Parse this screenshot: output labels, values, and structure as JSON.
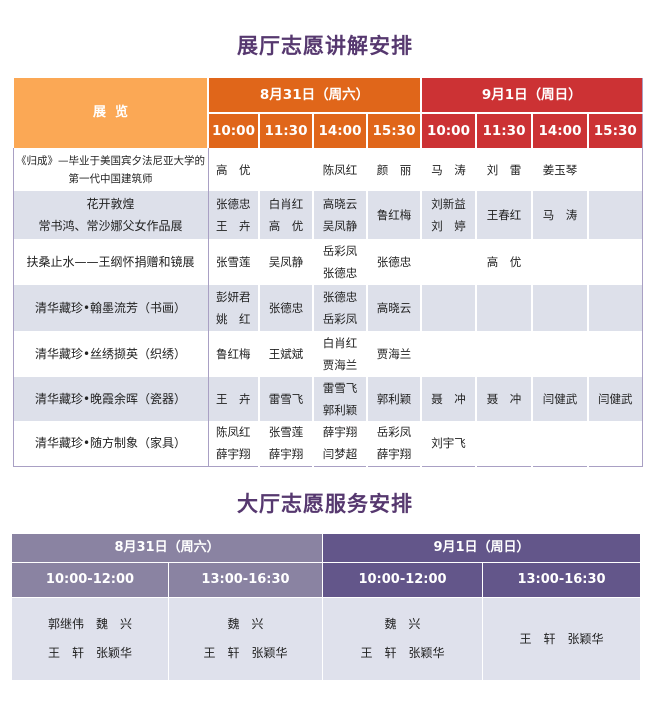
{
  "exhibit_title": "展厅志愿讲解安排",
  "exhibit_table": {
    "header_label": "展  览",
    "days": [
      {
        "label": "8月31日（周六）",
        "color": "#e0661a",
        "times": [
          "10:00",
          "11:30",
          "14:00",
          "15:30"
        ]
      },
      {
        "label": "9月1日（周日）",
        "color": "#cc3234",
        "times": [
          "10:00",
          "11:30",
          "14:00",
          "15:30"
        ]
      }
    ],
    "rows": [
      {
        "exhibit": "《归成》—毕业于美国宾夕法尼亚大学的\n第一代中国建筑师",
        "cells": [
          "高　优",
          "",
          "陈凤红",
          "颜　丽",
          "马　涛",
          "刘　雷",
          "姜玉琴",
          ""
        ]
      },
      {
        "exhibit": "花开敦煌\n常书鸿、常沙娜父女作品展",
        "cells": [
          "张德忠\n王　卉",
          "白肖红\n高　优",
          "高晓云\n吴凤静",
          "鲁红梅",
          "刘新益\n刘　婷",
          "王春红",
          "马　涛",
          ""
        ]
      },
      {
        "exhibit": "扶桑止水——王纲怀捐赠和镜展",
        "cells": [
          "张雪莲",
          "吴凤静",
          "岳彩凤\n张德忠",
          "张德忠",
          "",
          "高　优",
          "",
          ""
        ]
      },
      {
        "exhibit": "清华藏珍•翰墨流芳（书画）",
        "cells": [
          "彭妍君\n姚　红",
          "张德忠",
          "张德忠\n岳彩凤",
          "高晓云",
          "",
          "",
          "",
          ""
        ]
      },
      {
        "exhibit": "清华藏珍•丝绣撷英（织绣）",
        "cells": [
          "鲁红梅",
          "王斌斌",
          "白肖红\n贾海兰",
          "贾海兰",
          "",
          "",
          "",
          ""
        ]
      },
      {
        "exhibit": "清华藏珍•晚霞余晖（瓷器）",
        "cells": [
          "王　卉",
          "雷雪飞",
          "雷雪飞\n郭利颖",
          "郭利颖",
          "聂　冲",
          "聂　冲",
          "闫健武",
          "闫健武"
        ]
      },
      {
        "exhibit": "清华藏珍•随方制象（家具）",
        "cells": [
          "陈凤红\n薛宇翔",
          "张雪莲\n薛宇翔",
          "薛宇翔\n闫梦超",
          "岳彩凤\n薛宇翔",
          "刘宇飞",
          "",
          "",
          ""
        ]
      }
    ]
  },
  "hall_title": "大厅志愿服务安排",
  "hall_table": {
    "days": [
      {
        "label": "8月31日（周六）",
        "color": "#8a83a2",
        "slots": [
          "10:00-12:00",
          "13:00-16:30"
        ]
      },
      {
        "label": "9月1日（周日）",
        "color": "#63568a",
        "slots": [
          "10:00-12:00",
          "13:00-16:30"
        ]
      }
    ],
    "cells": [
      "郭继伟　魏　兴\n王　轩　张颖华",
      "魏　兴\n王　轩　张颖华",
      "魏　兴\n王　轩　张颖华",
      "王　轩　张颖华"
    ]
  }
}
